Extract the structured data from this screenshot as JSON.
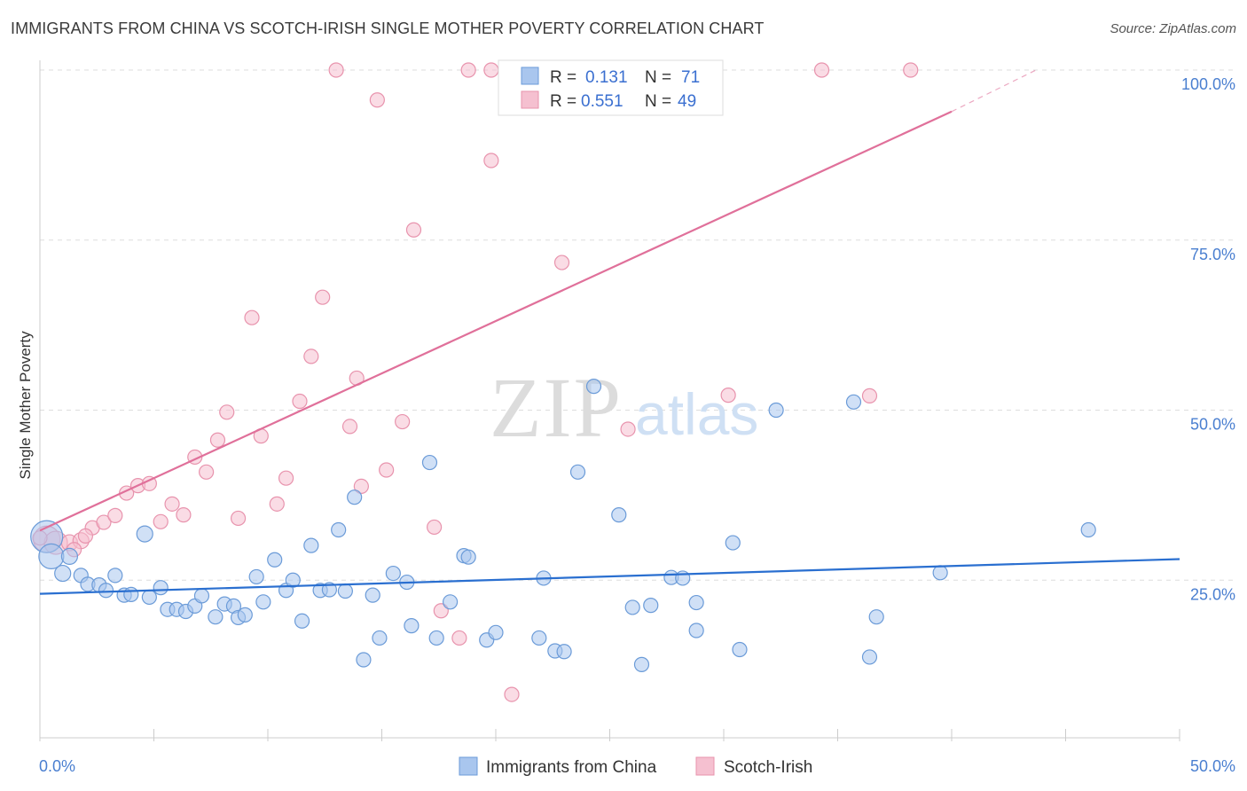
{
  "title": "IMMIGRANTS FROM CHINA VS SCOTCH-IRISH SINGLE MOTHER POVERTY CORRELATION CHART",
  "source": "Source: ZipAtlas.com",
  "watermark": {
    "zip": "ZIP",
    "atlas": "atlas"
  },
  "colors": {
    "china_fill": "#a9c6ee",
    "china_stroke": "#6b9bd8",
    "china_line": "#2a6fd0",
    "scotch_fill": "#f5c0d0",
    "scotch_stroke": "#e893ad",
    "scotch_line": "#e0709a",
    "tick_text": "#4a7fd0",
    "grid": "#dddddd"
  },
  "legend_top": {
    "rows": [
      {
        "r_label": "R =",
        "r_value": "0.131",
        "n_label": "N =",
        "n_value": "71"
      },
      {
        "r_label": "R =",
        "r_value": "0.551",
        "n_label": "N =",
        "n_value": "49"
      }
    ]
  },
  "legend_bottom": [
    "Immigrants from China",
    "Scotch-Irish"
  ],
  "chart_data": {
    "type": "scatter",
    "title": "IMMIGRANTS FROM CHINA VS SCOTCH-IRISH SINGLE MOTHER POVERTY CORRELATION CHART",
    "xlabel": "",
    "ylabel": "Single Mother Poverty",
    "xlim": [
      0,
      50
    ],
    "ylim": [
      0,
      102
    ],
    "x_tick_labels": [
      "0.0%",
      "50.0%"
    ],
    "y_ticks": [
      25,
      50,
      75,
      100
    ],
    "y_tick_labels": [
      "25.0%",
      "50.0%",
      "75.0%",
      "100.0%"
    ],
    "grid": true,
    "legend_position": "top-center",
    "series": [
      {
        "name": "Immigrants from China",
        "r": 0.131,
        "n": 71,
        "trend": {
          "x": [
            0,
            50
          ],
          "y": [
            23.0,
            28.1
          ]
        },
        "points": [
          [
            0.3,
            31.4,
            18
          ],
          [
            0.5,
            28.5,
            14
          ],
          [
            1.0,
            26.0,
            9
          ],
          [
            1.3,
            28.5,
            9
          ],
          [
            1.8,
            25.7,
            8
          ],
          [
            2.1,
            24.4,
            8
          ],
          [
            2.6,
            24.3,
            8
          ],
          [
            2.9,
            23.5,
            8
          ],
          [
            3.3,
            25.7,
            8
          ],
          [
            3.7,
            22.8,
            8
          ],
          [
            4.0,
            22.9,
            8
          ],
          [
            4.6,
            31.8,
            9
          ],
          [
            4.8,
            22.5,
            8
          ],
          [
            5.3,
            23.9,
            8
          ],
          [
            5.6,
            20.7,
            8
          ],
          [
            6.0,
            20.7,
            8
          ],
          [
            6.4,
            20.4,
            8
          ],
          [
            6.8,
            21.2,
            8
          ],
          [
            7.1,
            22.7,
            8
          ],
          [
            7.7,
            19.6,
            8
          ],
          [
            8.1,
            21.5,
            8
          ],
          [
            8.5,
            21.2,
            8
          ],
          [
            8.7,
            19.5,
            8
          ],
          [
            9.0,
            19.9,
            8
          ],
          [
            9.5,
            25.5,
            8
          ],
          [
            9.8,
            21.8,
            8
          ],
          [
            10.3,
            28.0,
            8
          ],
          [
            10.8,
            23.5,
            8
          ],
          [
            11.1,
            25.0,
            8
          ],
          [
            11.5,
            19.0,
            8
          ],
          [
            11.9,
            30.1,
            8
          ],
          [
            12.3,
            23.5,
            8
          ],
          [
            12.7,
            23.6,
            8
          ],
          [
            13.1,
            32.4,
            8
          ],
          [
            13.4,
            23.4,
            8
          ],
          [
            13.8,
            37.2,
            8
          ],
          [
            14.2,
            13.3,
            8
          ],
          [
            14.6,
            22.8,
            8
          ],
          [
            14.9,
            16.5,
            8
          ],
          [
            15.5,
            26.0,
            8
          ],
          [
            16.1,
            24.7,
            8
          ],
          [
            16.3,
            18.3,
            8
          ],
          [
            17.1,
            42.3,
            8
          ],
          [
            17.4,
            16.5,
            8
          ],
          [
            18.0,
            21.8,
            8
          ],
          [
            18.6,
            28.6,
            8
          ],
          [
            18.8,
            28.4,
            8
          ],
          [
            19.6,
            16.2,
            8
          ],
          [
            20.0,
            17.3,
            8
          ],
          [
            21.9,
            16.5,
            8
          ],
          [
            22.1,
            25.3,
            8
          ],
          [
            22.6,
            14.6,
            8
          ],
          [
            23.0,
            14.5,
            8
          ],
          [
            23.6,
            40.9,
            8
          ],
          [
            24.3,
            53.5,
            8
          ],
          [
            25.4,
            34.6,
            8
          ],
          [
            26.0,
            21.0,
            8
          ],
          [
            26.4,
            12.6,
            8
          ],
          [
            26.8,
            21.3,
            8
          ],
          [
            27.7,
            25.4,
            8
          ],
          [
            28.2,
            25.3,
            8
          ],
          [
            28.8,
            21.7,
            8
          ],
          [
            28.8,
            17.6,
            8
          ],
          [
            30.4,
            30.5,
            8
          ],
          [
            30.7,
            14.8,
            8
          ],
          [
            32.3,
            50.0,
            8
          ],
          [
            35.7,
            51.2,
            8
          ],
          [
            36.4,
            13.7,
            8
          ],
          [
            36.7,
            19.6,
            8
          ],
          [
            39.5,
            26.1,
            8
          ],
          [
            46.0,
            32.4,
            8
          ]
        ]
      },
      {
        "name": "Scotch-Irish",
        "r": 0.551,
        "n": 49,
        "trend": {
          "x": [
            0,
            40
          ],
          "y": [
            32.3,
            93.9
          ]
        },
        "trend_dashed": {
          "x": [
            40,
            43.7
          ],
          "y": [
            93.9,
            100.0
          ]
        },
        "points": [
          [
            0.3,
            31.0,
            15
          ],
          [
            0.7,
            30.5,
            13
          ],
          [
            1.3,
            30.5,
            9
          ],
          [
            1.8,
            30.8,
            9
          ],
          [
            2.3,
            32.7,
            8
          ],
          [
            2.8,
            33.5,
            8
          ],
          [
            3.3,
            34.5,
            8
          ],
          [
            3.8,
            37.8,
            8
          ],
          [
            4.3,
            38.9,
            8
          ],
          [
            4.8,
            39.2,
            8
          ],
          [
            5.3,
            33.6,
            8
          ],
          [
            5.8,
            36.2,
            8
          ],
          [
            6.3,
            34.6,
            8
          ],
          [
            6.8,
            43.1,
            8
          ],
          [
            7.3,
            40.9,
            8
          ],
          [
            7.8,
            45.6,
            8
          ],
          [
            8.2,
            49.7,
            8
          ],
          [
            8.7,
            34.1,
            8
          ],
          [
            9.3,
            63.6,
            8
          ],
          [
            9.7,
            46.2,
            8
          ],
          [
            10.4,
            36.2,
            8
          ],
          [
            10.8,
            40.0,
            8
          ],
          [
            11.4,
            51.3,
            8
          ],
          [
            11.9,
            57.9,
            8
          ],
          [
            12.4,
            66.6,
            8
          ],
          [
            13.0,
            100.0,
            8
          ],
          [
            13.6,
            47.6,
            8
          ],
          [
            13.9,
            54.7,
            8
          ],
          [
            14.1,
            38.8,
            8
          ],
          [
            14.8,
            95.6,
            8
          ],
          [
            15.2,
            41.2,
            8
          ],
          [
            15.9,
            48.3,
            8
          ],
          [
            16.4,
            76.5,
            8
          ],
          [
            17.3,
            32.8,
            8
          ],
          [
            17.6,
            20.5,
            8
          ],
          [
            18.4,
            16.5,
            8
          ],
          [
            18.8,
            100.0,
            8
          ],
          [
            19.8,
            100.0,
            8
          ],
          [
            19.8,
            86.7,
            8
          ],
          [
            20.7,
            8.2,
            8
          ],
          [
            22.9,
            71.7,
            8
          ],
          [
            25.8,
            47.2,
            8
          ],
          [
            30.2,
            52.2,
            8
          ],
          [
            34.3,
            100.0,
            8
          ],
          [
            36.4,
            52.1,
            8
          ],
          [
            38.2,
            100.0,
            8
          ],
          [
            0.0,
            31.2,
            8
          ],
          [
            1.5,
            29.5,
            8
          ],
          [
            2.0,
            31.5,
            8
          ]
        ]
      }
    ]
  }
}
